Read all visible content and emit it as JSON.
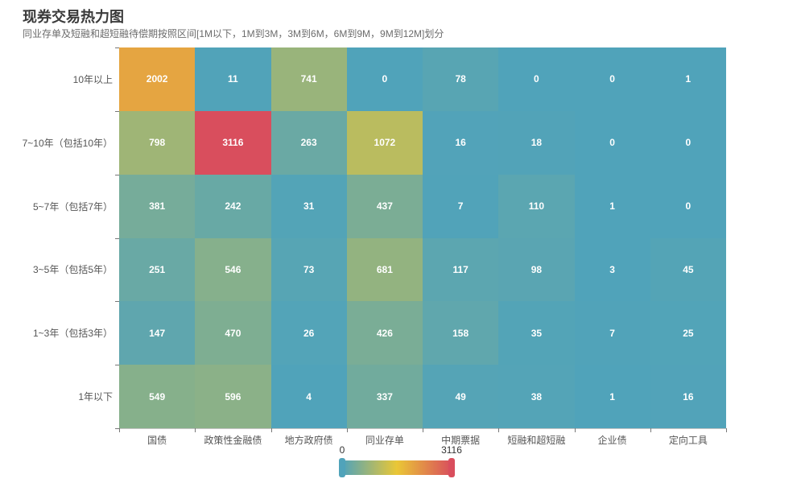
{
  "title": "现券交易热力图",
  "subtitle": "同业存单及短融和超短融待偿期按照区间[1M以下，1M到3M，3M到6M，6M到9M，9M到12M]划分",
  "chart_data": {
    "type": "heatmap",
    "title": "现券交易热力图",
    "subtitle": "同业存单及短融和超短融待偿期按照区间[1M以下，1M到3M，3M到6M，6M到9M，9M到12M]划分",
    "x_categories": [
      "国债",
      "政策性金融债",
      "地方政府债",
      "同业存单",
      "中期票据",
      "短融和超短融",
      "企业债",
      "定向工具"
    ],
    "y_categories_top_to_bottom": [
      "10年以上",
      "7~10年（包括10年）",
      "5~7年（包括7年）",
      "3~5年（包括5年）",
      "1~3年（包括3年）",
      "1年以下"
    ],
    "values_rows_top_to_bottom": [
      [
        2002,
        11,
        741,
        0,
        78,
        0,
        0,
        1
      ],
      [
        798,
        3116,
        263,
        1072,
        16,
        18,
        0,
        0
      ],
      [
        381,
        242,
        31,
        437,
        7,
        110,
        1,
        0
      ],
      [
        251,
        546,
        73,
        681,
        117,
        98,
        3,
        45
      ],
      [
        147,
        470,
        26,
        426,
        158,
        35,
        7,
        25
      ],
      [
        549,
        596,
        4,
        337,
        49,
        38,
        1,
        16
      ]
    ],
    "cell_label_color": "#ffffff",
    "visual_map": {
      "min": 0,
      "max": 3116,
      "min_label": "0",
      "max_label": "3116",
      "gradient_colors": [
        "#50a3ba",
        "#eac736",
        "#d94e5d"
      ],
      "orientation": "horizontal",
      "position": "bottom-center"
    },
    "grid": {
      "columns": 8,
      "rows": 6
    },
    "legend_position": "bottom-center",
    "background": "#ffffff"
  }
}
